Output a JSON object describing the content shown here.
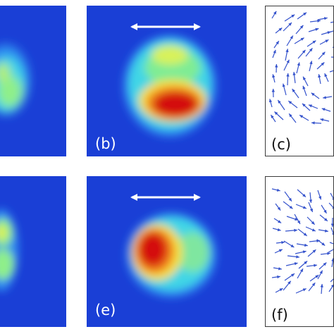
{
  "panels": {
    "b": {
      "label": "(b)"
    },
    "c": {
      "label": "(c)"
    },
    "e": {
      "label": "(e)"
    },
    "f": {
      "label": "(f)"
    }
  },
  "colors": {
    "background": "#1a3fd6",
    "arrow": "#ffffff",
    "vector": "#3452cc",
    "frame": "#3a3a3a"
  },
  "icons": {
    "polarization": "double-headed-arrow-icon",
    "field": "vector-arrow-icon"
  }
}
